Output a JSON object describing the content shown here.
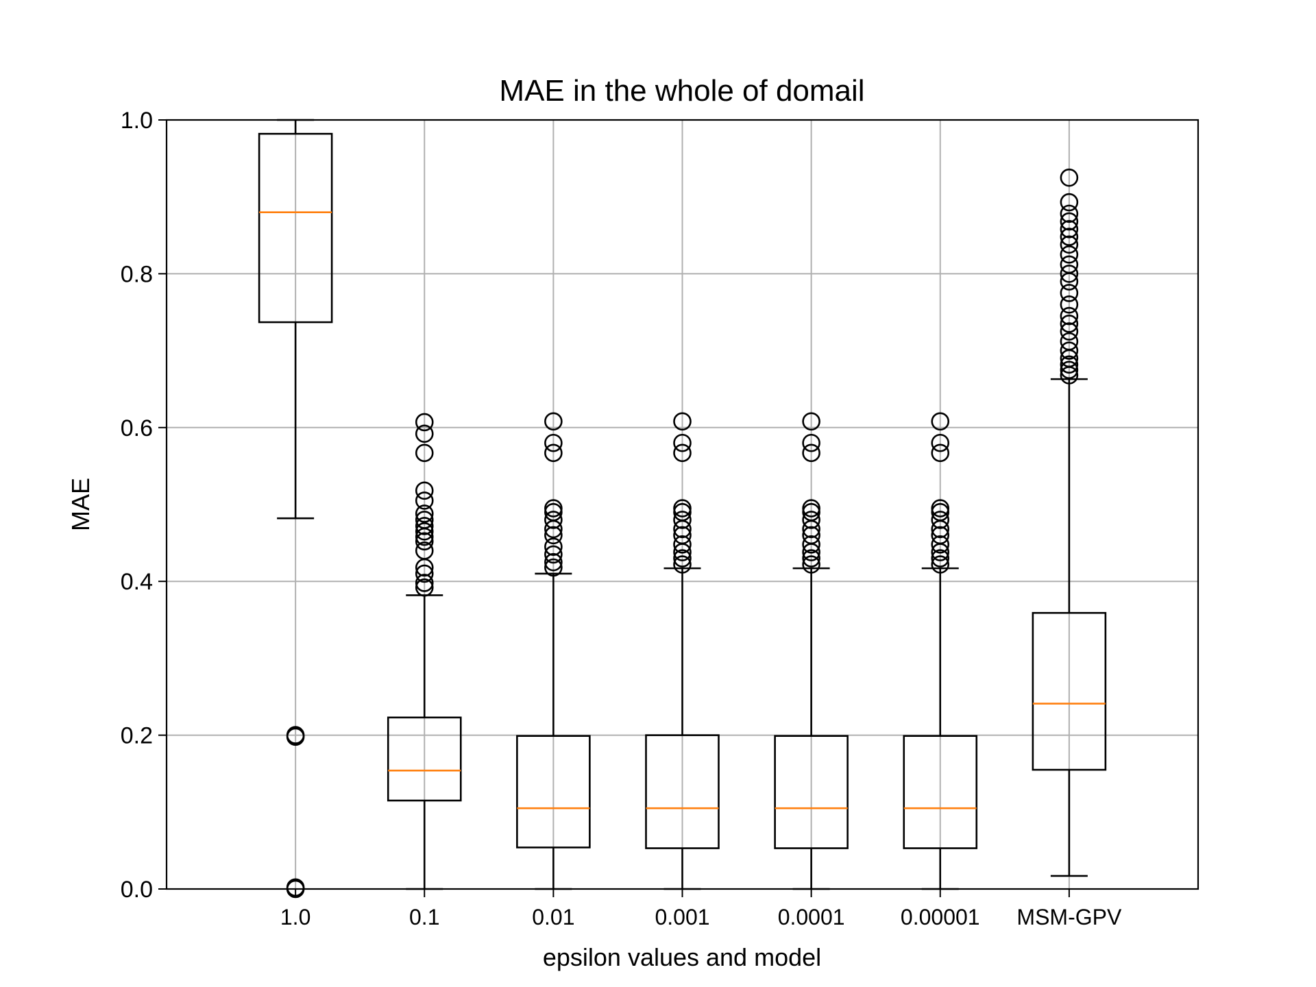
{
  "chart_data": {
    "type": "boxplot",
    "title": "MAE in the whole of domail",
    "xlabel": "epsilon values and model",
    "ylabel": "MAE",
    "ylim": [
      0.0,
      1.0
    ],
    "yticks": [
      "0.0",
      "0.2",
      "0.4",
      "0.6",
      "0.8",
      "1.0"
    ],
    "categories": [
      "1.0",
      "0.1",
      "0.01",
      "0.001",
      "0.0001",
      "0.00001",
      "MSM-GPV"
    ],
    "grid": true,
    "colors": {
      "box": "#000000",
      "median": "#ff7f0e",
      "grid": "#b0b0b0"
    },
    "boxes": [
      {
        "label": "1.0",
        "whisker_low": 0.482,
        "q1": 0.737,
        "median": 0.88,
        "q3": 0.982,
        "whisker_high": 1.0,
        "outliers": [
          0.0,
          0.002,
          0.198,
          0.2
        ]
      },
      {
        "label": "0.1",
        "whisker_low": 0.0,
        "q1": 0.115,
        "median": 0.154,
        "q3": 0.223,
        "whisker_high": 0.382,
        "outliers": [
          0.392,
          0.398,
          0.41,
          0.418,
          0.44,
          0.452,
          0.458,
          0.465,
          0.472,
          0.48,
          0.488,
          0.505,
          0.518,
          0.567,
          0.592,
          0.607
        ]
      },
      {
        "label": "0.01",
        "whisker_low": 0.0,
        "q1": 0.054,
        "median": 0.105,
        "q3": 0.199,
        "whisker_high": 0.41,
        "outliers": [
          0.418,
          0.425,
          0.435,
          0.445,
          0.46,
          0.468,
          0.48,
          0.49,
          0.495,
          0.567,
          0.58,
          0.608
        ]
      },
      {
        "label": "0.001",
        "whisker_low": 0.0,
        "q1": 0.053,
        "median": 0.105,
        "q3": 0.2,
        "whisker_high": 0.417,
        "outliers": [
          0.422,
          0.43,
          0.438,
          0.448,
          0.46,
          0.468,
          0.48,
          0.49,
          0.495,
          0.567,
          0.58,
          0.608
        ]
      },
      {
        "label": "0.0001",
        "whisker_low": 0.0,
        "q1": 0.053,
        "median": 0.105,
        "q3": 0.199,
        "whisker_high": 0.417,
        "outliers": [
          0.422,
          0.43,
          0.438,
          0.448,
          0.46,
          0.468,
          0.48,
          0.49,
          0.495,
          0.567,
          0.58,
          0.608
        ]
      },
      {
        "label": "0.00001",
        "whisker_low": 0.0,
        "q1": 0.053,
        "median": 0.105,
        "q3": 0.199,
        "whisker_high": 0.417,
        "outliers": [
          0.422,
          0.43,
          0.438,
          0.448,
          0.46,
          0.468,
          0.48,
          0.49,
          0.495,
          0.567,
          0.58,
          0.608
        ]
      },
      {
        "label": "MSM-GPV",
        "whisker_low": 0.017,
        "q1": 0.155,
        "median": 0.241,
        "q3": 0.359,
        "whisker_high": 0.663,
        "outliers": [
          0.668,
          0.675,
          0.682,
          0.69,
          0.7,
          0.712,
          0.725,
          0.735,
          0.745,
          0.76,
          0.775,
          0.79,
          0.8,
          0.812,
          0.825,
          0.838,
          0.848,
          0.858,
          0.868,
          0.878,
          0.893,
          0.925
        ]
      }
    ]
  }
}
